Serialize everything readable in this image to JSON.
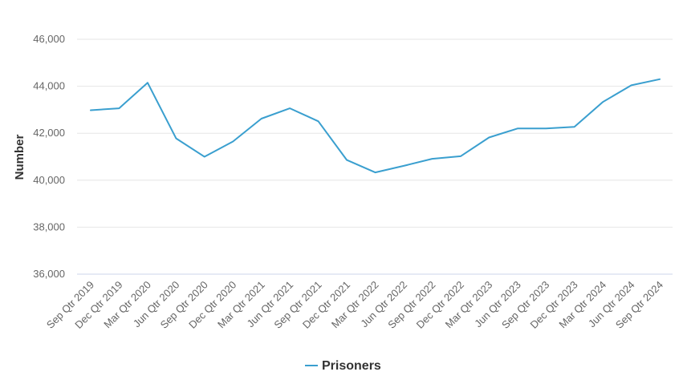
{
  "chart_data": {
    "type": "line",
    "title": "",
    "xlabel": "",
    "ylabel": "Number",
    "ylim": [
      36000,
      46000
    ],
    "yticks": [
      36000,
      38000,
      40000,
      42000,
      44000,
      46000
    ],
    "ytick_labels": [
      "36,000",
      "38,000",
      "40,000",
      "42,000",
      "44,000",
      "46,000"
    ],
    "grid": true,
    "legend_position": "bottom-center",
    "categories": [
      "Sep Qtr 2019",
      "Dec Qtr 2019",
      "Mar Qtr 2020",
      "Jun Qtr 2020",
      "Sep Qtr 2020",
      "Dec Qtr 2020",
      "Mar Qtr 2021",
      "Jun Qtr 2021",
      "Sep Qtr 2021",
      "Dec Qtr 2021",
      "Mar Qtr 2022",
      "Jun Qtr 2022",
      "Sep Qtr 2022",
      "Dec Qtr 2022",
      "Mar Qtr 2023",
      "Jun Qtr 2023",
      "Sep Qtr 2023",
      "Dec Qtr 2023",
      "Mar Qtr 2024",
      "Jun Qtr 2024",
      "Sep Qtr 2024"
    ],
    "series": [
      {
        "name": "Prisoners",
        "color": "#3a9fcf",
        "values": [
          42980,
          43060,
          44150,
          41780,
          41000,
          41650,
          42620,
          43060,
          42510,
          40860,
          40330,
          40610,
          40910,
          41020,
          41820,
          42200,
          42200,
          42270,
          43330,
          44040,
          44300
        ]
      }
    ]
  }
}
